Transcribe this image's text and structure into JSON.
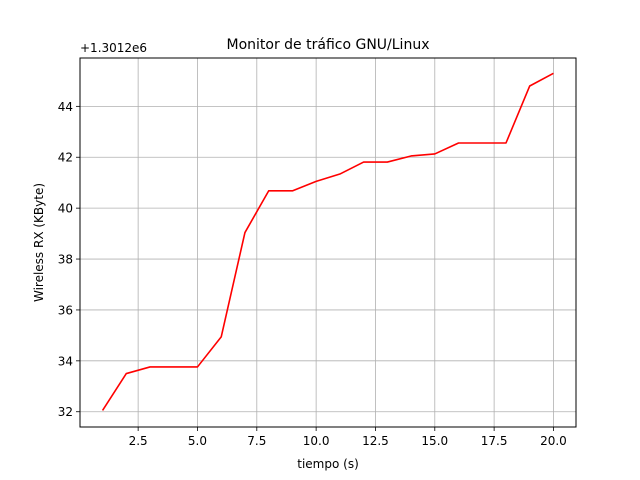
{
  "chart_data": {
    "type": "line",
    "title": "Monitor de tráfico GNU/Linux",
    "xlabel": "tiempo (s)",
    "ylabel": "Wireless RX (KByte)",
    "offset_label": "+1.3012e6",
    "xlim": [
      0.05,
      20.95
    ],
    "ylim": [
      31.4,
      45.9
    ],
    "x_ticks": [
      2.5,
      5.0,
      7.5,
      10.0,
      12.5,
      15.0,
      17.5,
      20.0
    ],
    "x_tick_labels": [
      "2.5",
      "5.0",
      "7.5",
      "10.0",
      "12.5",
      "15.0",
      "17.5",
      "20.0"
    ],
    "y_ticks": [
      32,
      34,
      36,
      38,
      40,
      42,
      44
    ],
    "y_tick_labels": [
      "32",
      "34",
      "36",
      "38",
      "40",
      "42",
      "44"
    ],
    "grid": true,
    "series": [
      {
        "color": "#ff0000",
        "x": [
          1,
          2,
          3,
          4,
          5,
          6,
          7,
          8,
          9,
          10,
          11,
          12,
          13,
          14,
          15,
          16,
          17,
          18,
          19,
          20
        ],
        "y": [
          32.05,
          33.5,
          33.76,
          33.76,
          33.76,
          34.94,
          39.04,
          40.68,
          40.68,
          41.05,
          41.34,
          41.81,
          41.81,
          42.05,
          42.13,
          42.56,
          42.56,
          42.56,
          44.8,
          45.3
        ]
      }
    ]
  }
}
